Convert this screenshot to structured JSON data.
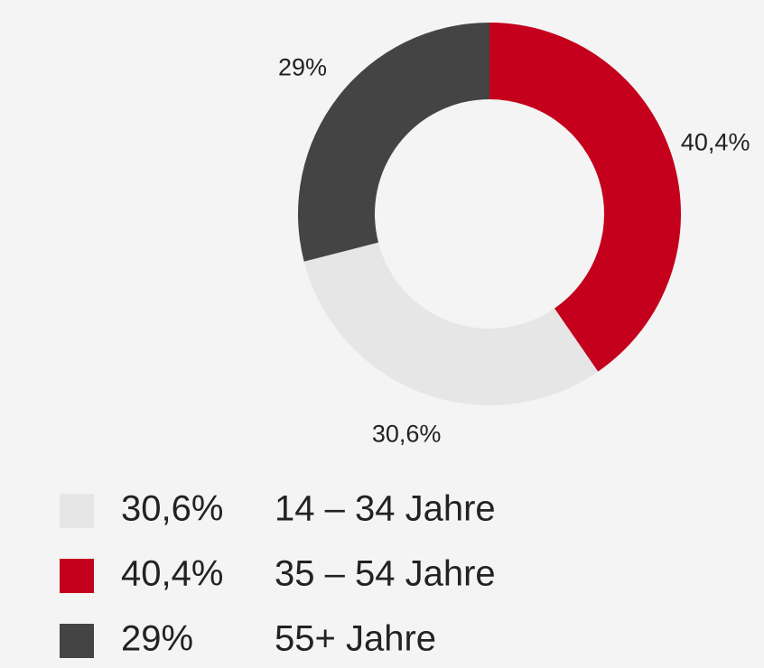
{
  "chart_data": {
    "type": "donut",
    "categories": [
      "14 – 34 Jahre",
      "35 – 54 Jahre",
      "55+ Jahre"
    ],
    "values": [
      30.6,
      40.4,
      29
    ],
    "value_labels": [
      "30,6%",
      "40,4%",
      "29%"
    ],
    "colors": [
      "#e6e6e6",
      "#c4001c",
      "#444444"
    ],
    "legend": "bottom-left"
  }
}
